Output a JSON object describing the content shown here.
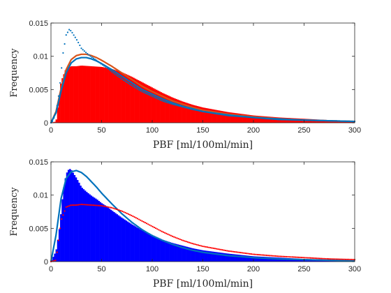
{
  "chart_data": [
    {
      "type": "bar",
      "panel": "top",
      "xlabel": "PBF [ml/100ml/min]",
      "ylabel": "Frequency",
      "xlim": [
        0,
        300
      ],
      "ylim": [
        0,
        0.015
      ],
      "xticks": [
        0,
        50,
        100,
        150,
        200,
        250,
        300
      ],
      "yticks": [
        0,
        0.005,
        0.01,
        0.015
      ],
      "xtick_labels": [
        "0",
        "50",
        "100",
        "150",
        "200",
        "250",
        "300"
      ],
      "ytick_labels": [
        "0",
        "0.005",
        "0.01",
        "0.015"
      ],
      "grid": false,
      "histogram": {
        "color": "#ff0000",
        "x": [
          0,
          5,
          10,
          15,
          20,
          25,
          30,
          40,
          50,
          60,
          70,
          80,
          90,
          100,
          110,
          120,
          130,
          140,
          150,
          175,
          200,
          225,
          250,
          275,
          300
        ],
        "y": [
          0,
          0.0002,
          0.0062,
          0.0082,
          0.0085,
          0.0085,
          0.0086,
          0.0085,
          0.0084,
          0.0081,
          0.0076,
          0.0069,
          0.0061,
          0.0053,
          0.0045,
          0.0038,
          0.0032,
          0.0027,
          0.0023,
          0.0016,
          0.0011,
          0.0008,
          0.0006,
          0.0004,
          0.0003
        ]
      },
      "dotted_series": {
        "color": "#0072bd",
        "x": [
          0,
          2,
          5,
          8,
          10,
          12,
          15,
          18,
          20,
          22,
          25,
          28,
          30,
          35,
          40,
          45,
          50,
          55,
          60,
          70,
          80,
          90,
          100,
          110,
          120,
          130,
          140,
          150,
          160,
          175,
          200,
          225,
          250,
          275,
          300
        ],
        "y": [
          0,
          0.0003,
          0.0016,
          0.0045,
          0.0075,
          0.0105,
          0.0132,
          0.014,
          0.0138,
          0.0133,
          0.0126,
          0.0118,
          0.0112,
          0.0105,
          0.0099,
          0.0094,
          0.0088,
          0.0083,
          0.0077,
          0.0066,
          0.0056,
          0.0047,
          0.004,
          0.0033,
          0.0028,
          0.0024,
          0.002,
          0.0017,
          0.0015,
          0.0012,
          0.0008,
          0.0006,
          0.0004,
          0.0003,
          0.0002
        ]
      },
      "fit_curves": [
        {
          "color": "#d95319",
          "x": [
            0,
            5,
            10,
            15,
            20,
            25,
            30,
            35,
            40,
            45,
            50,
            60,
            70,
            80,
            90,
            100,
            110,
            120,
            130,
            140,
            150,
            175,
            200,
            225,
            250,
            275,
            300
          ],
          "y": [
            0,
            0.0017,
            0.0052,
            0.008,
            0.0095,
            0.0101,
            0.0103,
            0.0103,
            0.0101,
            0.0098,
            0.0094,
            0.0085,
            0.0075,
            0.0065,
            0.0055,
            0.0047,
            0.004,
            0.0033,
            0.0028,
            0.0023,
            0.0019,
            0.0013,
            0.0009,
            0.0006,
            0.0004,
            0.0003,
            0.0002
          ]
        },
        {
          "color": "#0072bd",
          "x": [
            0,
            5,
            10,
            15,
            20,
            25,
            30,
            35,
            40,
            45,
            50,
            60,
            70,
            80,
            90,
            100,
            110,
            120,
            130,
            140,
            150,
            175,
            200,
            225,
            250,
            275,
            300
          ],
          "y": [
            0,
            0.0015,
            0.0048,
            0.0075,
            0.009,
            0.0096,
            0.0098,
            0.0098,
            0.0096,
            0.0093,
            0.0089,
            0.008,
            0.007,
            0.006,
            0.005,
            0.0043,
            0.0036,
            0.003,
            0.0025,
            0.0021,
            0.0017,
            0.0011,
            0.0008,
            0.0005,
            0.0004,
            0.0003,
            0.0002
          ]
        }
      ]
    },
    {
      "type": "bar",
      "panel": "bottom",
      "xlabel": "PBF [ml/100ml/min]",
      "ylabel": "Frequency",
      "xlim": [
        0,
        300
      ],
      "ylim": [
        0,
        0.015
      ],
      "xticks": [
        0,
        50,
        100,
        150,
        200,
        250,
        300
      ],
      "yticks": [
        0,
        0.005,
        0.01,
        0.015
      ],
      "xtick_labels": [
        "0",
        "50",
        "100",
        "150",
        "200",
        "250",
        "300"
      ],
      "ytick_labels": [
        "0",
        "0.005",
        "0.01",
        "0.015"
      ],
      "grid": false,
      "histogram": {
        "color": "#0000ff",
        "x": [
          0,
          5,
          8,
          10,
          12,
          15,
          18,
          20,
          22,
          25,
          28,
          30,
          35,
          40,
          45,
          50,
          55,
          60,
          70,
          80,
          90,
          100,
          110,
          120,
          130,
          140,
          150,
          160,
          175,
          200,
          225,
          250,
          275,
          300
        ],
        "y": [
          0,
          0.0016,
          0.0045,
          0.0075,
          0.0105,
          0.0132,
          0.014,
          0.0138,
          0.0133,
          0.0126,
          0.0118,
          0.0112,
          0.0105,
          0.0099,
          0.0094,
          0.0088,
          0.0083,
          0.0077,
          0.0066,
          0.0056,
          0.0047,
          0.004,
          0.0033,
          0.0028,
          0.0024,
          0.002,
          0.0017,
          0.0015,
          0.0012,
          0.0008,
          0.0006,
          0.0004,
          0.0003,
          0.0002
        ]
      },
      "dotted_series": {
        "color": "#ff0000",
        "x": [
          0,
          5,
          10,
          15,
          20,
          25,
          30,
          40,
          50,
          60,
          70,
          80,
          90,
          100,
          110,
          120,
          130,
          140,
          150,
          175,
          200,
          225,
          250,
          275,
          300
        ],
        "y": [
          0,
          0.0002,
          0.0062,
          0.0082,
          0.0085,
          0.0085,
          0.0086,
          0.0085,
          0.0084,
          0.0081,
          0.0076,
          0.0069,
          0.0061,
          0.0053,
          0.0045,
          0.0038,
          0.0032,
          0.0027,
          0.0023,
          0.0016,
          0.0011,
          0.0008,
          0.0006,
          0.0004,
          0.0003
        ]
      },
      "fit_curves": [
        {
          "color": "#0072bd",
          "x": [
            0,
            5,
            10,
            15,
            20,
            25,
            30,
            35,
            40,
            45,
            50,
            60,
            70,
            80,
            90,
            100,
            110,
            120,
            130,
            140,
            150,
            175,
            200,
            225,
            250,
            275,
            300
          ],
          "y": [
            0,
            0.004,
            0.0095,
            0.0125,
            0.0135,
            0.0137,
            0.0134,
            0.0128,
            0.012,
            0.0112,
            0.0103,
            0.0087,
            0.0072,
            0.0059,
            0.0048,
            0.0039,
            0.0032,
            0.0026,
            0.0021,
            0.0017,
            0.0014,
            0.0009,
            0.0006,
            0.0004,
            0.0003,
            0.0002,
            0.0001
          ]
        }
      ]
    }
  ]
}
